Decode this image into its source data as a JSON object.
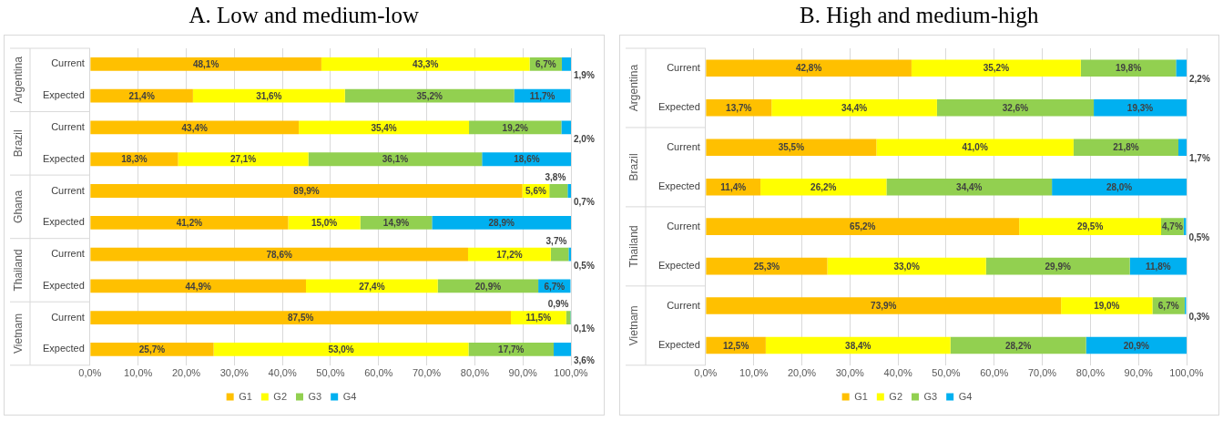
{
  "chart_data": [
    {
      "type": "bar",
      "title": "A.   Low and medium-low",
      "orientation": "horizontal",
      "stacked": true,
      "categories": [
        "Current",
        "Expected",
        "Current",
        "Expected",
        "Current",
        "Expected",
        "Current",
        "Expected",
        "Current",
        "Expected"
      ],
      "annotations": [
        "Argentina",
        "Brazil",
        "Ghana",
        "Thailand",
        "Vietnam"
      ],
      "series": [
        {
          "name": "G1",
          "color": "#ffc000",
          "values": [
            48.1,
            21.4,
            43.4,
            18.3,
            89.9,
            41.2,
            78.6,
            44.9,
            87.5,
            25.7
          ],
          "value_labels": [
            "48,1%",
            "21,4%",
            "43,4%",
            "18,3%",
            "89,9%",
            "41,2%",
            "78,6%",
            "44,9%",
            "87,5%",
            "25,7%"
          ]
        },
        {
          "name": "G2",
          "color": "#ffff00",
          "values": [
            43.3,
            31.6,
            35.4,
            27.1,
            5.6,
            15.0,
            17.2,
            27.4,
            11.5,
            53.0
          ],
          "value_labels": [
            "43,3%",
            "31,6%",
            "35,4%",
            "27,1%",
            "5,6%",
            "15,0%",
            "17,2%",
            "27,4%",
            "11,5%",
            "53,0%"
          ]
        },
        {
          "name": "G3",
          "color": "#92d050",
          "values": [
            6.7,
            35.2,
            19.2,
            36.1,
            3.8,
            14.9,
            3.7,
            20.9,
            0.9,
            17.7
          ],
          "value_labels": [
            "6,7%",
            "35,2%",
            "19,2%",
            "36,1%",
            "3,8%",
            "14,9%",
            "3,7%",
            "20,9%",
            "0,9%",
            "17,7%"
          ]
        },
        {
          "name": "G4",
          "color": "#00b0f0",
          "values": [
            1.9,
            11.7,
            2.0,
            18.6,
            0.7,
            28.9,
            0.5,
            6.7,
            0.1,
            3.6
          ],
          "value_labels": [
            "1,9%",
            "11,7%",
            "2,0%",
            "18,6%",
            "0,7%",
            "28,9%",
            "0,5%",
            "6,7%",
            "0,1%",
            "3,6%"
          ]
        }
      ],
      "xlim": [
        0,
        100
      ],
      "xticks": [
        {
          "value": 0,
          "label": "0,0%"
        },
        {
          "value": 10,
          "label": "10,0%"
        },
        {
          "value": 20,
          "label": "20,0%"
        },
        {
          "value": 30,
          "label": "30,0%"
        },
        {
          "value": 40,
          "label": "40,0%"
        },
        {
          "value": 50,
          "label": "50,0%"
        },
        {
          "value": 60,
          "label": "60,0%"
        },
        {
          "value": 70,
          "label": "70,0%"
        },
        {
          "value": 80,
          "label": "80,0%"
        },
        {
          "value": 90,
          "label": "90,0%"
        },
        {
          "value": 100,
          "label": "100,0%"
        }
      ],
      "grid": "x",
      "legend": "bottom"
    },
    {
      "type": "bar",
      "title": "B. High and medium-high",
      "orientation": "horizontal",
      "stacked": true,
      "categories": [
        "Current",
        "Expected",
        "Current",
        "Expected",
        "Current",
        "Expected",
        "Current",
        "Expected"
      ],
      "annotations": [
        "Argentina",
        "Brazil",
        "Thailand",
        "Vietnam"
      ],
      "series": [
        {
          "name": "G1",
          "color": "#ffc000",
          "values": [
            42.8,
            13.7,
            35.5,
            11.4,
            65.2,
            25.3,
            73.9,
            12.5
          ],
          "value_labels": [
            "42,8%",
            "13,7%",
            "35,5%",
            "11,4%",
            "65,2%",
            "25,3%",
            "73,9%",
            "12,5%"
          ]
        },
        {
          "name": "G2",
          "color": "#ffff00",
          "values": [
            35.2,
            34.4,
            41.0,
            26.2,
            29.5,
            33.0,
            19.0,
            38.4
          ],
          "value_labels": [
            "35,2%",
            "34,4%",
            "41,0%",
            "26,2%",
            "29,5%",
            "33,0%",
            "19,0%",
            "38,4%"
          ]
        },
        {
          "name": "G3",
          "color": "#92d050",
          "values": [
            19.8,
            32.6,
            21.8,
            34.4,
            4.7,
            29.9,
            6.7,
            28.2
          ],
          "value_labels": [
            "19,8%",
            "32,6%",
            "21,8%",
            "34,4%",
            "4,7%",
            "29,9%",
            "6,7%",
            "28,2%"
          ]
        },
        {
          "name": "G4",
          "color": "#00b0f0",
          "values": [
            2.2,
            19.3,
            1.7,
            28.0,
            0.5,
            11.8,
            0.3,
            20.9
          ],
          "value_labels": [
            "2,2%",
            "19,3%",
            "1,7%",
            "28,0%",
            "0,5%",
            "11,8%",
            "0,3%",
            "20,9%"
          ]
        }
      ],
      "xlim": [
        0,
        100
      ],
      "xticks": [
        {
          "value": 0,
          "label": "0,0%"
        },
        {
          "value": 10,
          "label": "10,0%"
        },
        {
          "value": 20,
          "label": "20,0%"
        },
        {
          "value": 30,
          "label": "30,0%"
        },
        {
          "value": 40,
          "label": "40,0%"
        },
        {
          "value": 50,
          "label": "50,0%"
        },
        {
          "value": 60,
          "label": "60,0%"
        },
        {
          "value": 70,
          "label": "70,0%"
        },
        {
          "value": 80,
          "label": "80,0%"
        },
        {
          "value": 90,
          "label": "90,0%"
        },
        {
          "value": 100,
          "label": "100,0%"
        }
      ],
      "grid": "x",
      "legend": "bottom"
    }
  ]
}
